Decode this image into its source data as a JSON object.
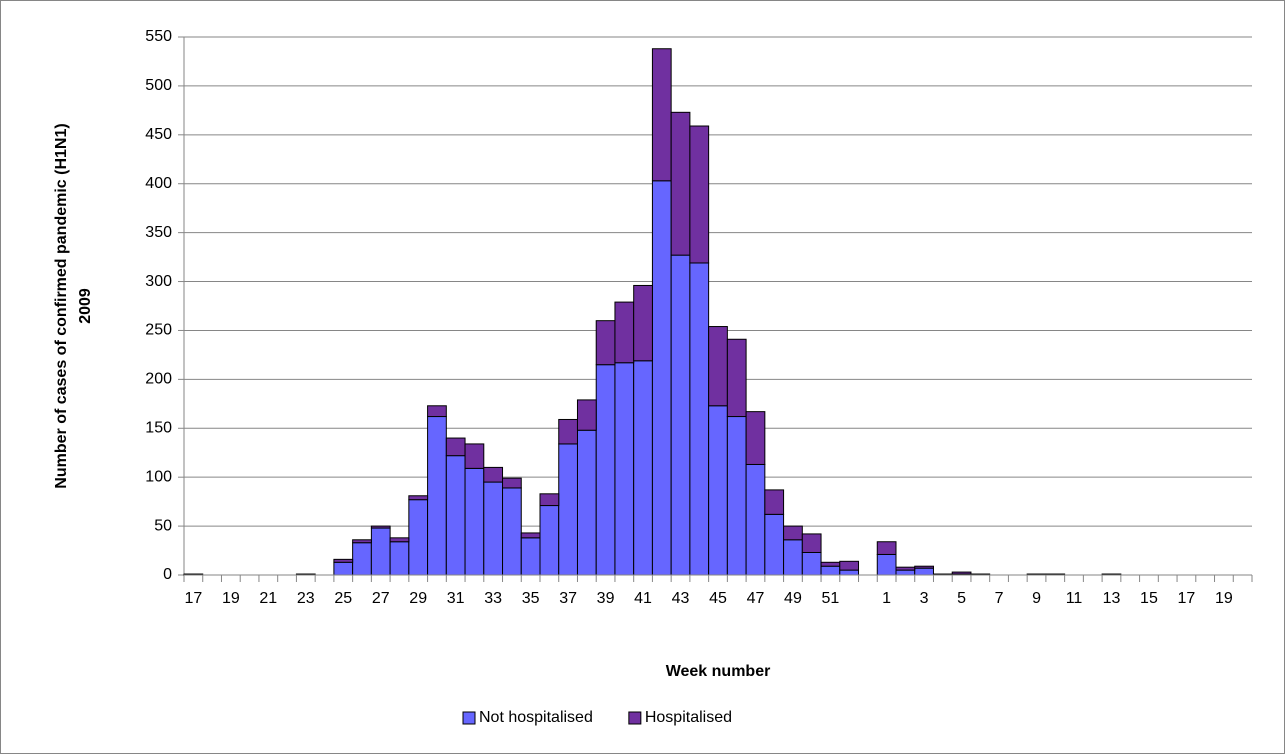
{
  "chart_data": {
    "type": "bar",
    "stacked": true,
    "x_label": "Week number",
    "y_label": [
      "Number of cases of confirmed pandemic (H1N1)",
      "2009"
    ],
    "categories": [
      "17",
      null,
      "19",
      null,
      "21",
      null,
      "23",
      null,
      "25",
      null,
      "27",
      null,
      "29",
      null,
      "31",
      null,
      "33",
      null,
      "35",
      null,
      "37",
      null,
      "39",
      null,
      "41",
      null,
      "43",
      null,
      "45",
      null,
      "47",
      null,
      "49",
      null,
      "51",
      null,
      null,
      "1",
      null,
      "3",
      null,
      "5",
      null,
      "7",
      null,
      "9",
      null,
      "11",
      null,
      "13",
      null,
      "15",
      null,
      "17",
      null,
      "19",
      null
    ],
    "series": [
      {
        "name": "Not hospitalised",
        "color": "#6666ff",
        "values": [
          1,
          0,
          0,
          0,
          0,
          0,
          1,
          0,
          13,
          33,
          48,
          34,
          77,
          162,
          122,
          109,
          95,
          89,
          38,
          71,
          134,
          148,
          215,
          217,
          219,
          403,
          327,
          319,
          173,
          162,
          113,
          62,
          36,
          23,
          9,
          5,
          0,
          21,
          5,
          7,
          1,
          1,
          1,
          0,
          0,
          1,
          1,
          0,
          0,
          1,
          0,
          0,
          0,
          0,
          0,
          0,
          0
        ]
      },
      {
        "name": "Hospitalised",
        "color": "#7030a0",
        "values": [
          0,
          0,
          0,
          0,
          0,
          0,
          0,
          0,
          3,
          3,
          2,
          4,
          4,
          11,
          18,
          25,
          15,
          10,
          5,
          12,
          25,
          31,
          45,
          62,
          77,
          135,
          146,
          140,
          81,
          79,
          54,
          25,
          14,
          19,
          4,
          9,
          0,
          13,
          3,
          2,
          0,
          2,
          0,
          0,
          0,
          0,
          0,
          0,
          0,
          0,
          0,
          0,
          0,
          0,
          0,
          0,
          0
        ]
      }
    ],
    "ylim": [
      0,
      550
    ],
    "yticks": [
      0,
      50,
      100,
      150,
      200,
      250,
      300,
      350,
      400,
      450,
      500,
      550
    ],
    "grid": true,
    "legend": "bottom"
  }
}
